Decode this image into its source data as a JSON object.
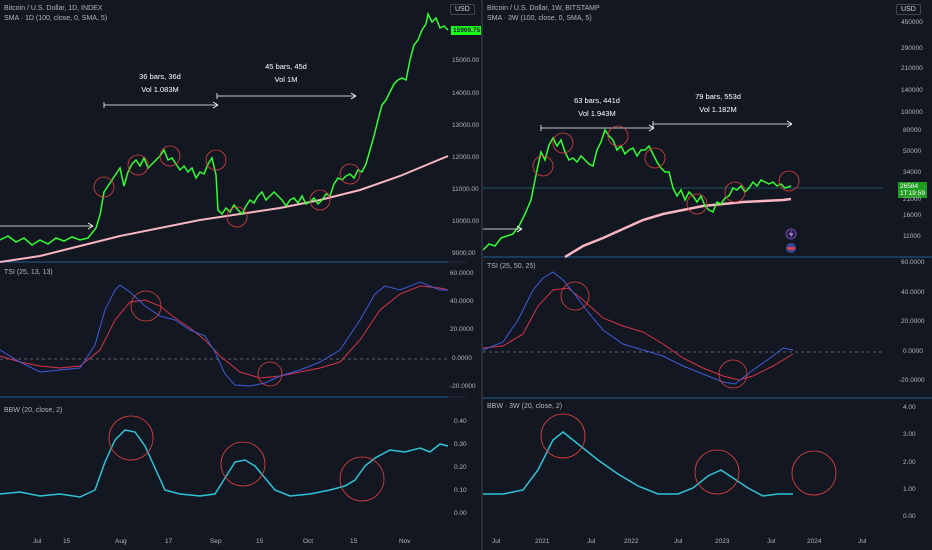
{
  "left": {
    "main_title": "Bitcoin / U.S. Dollar, 1D, INDEX",
    "sma_label": "SMA · 1D (100, close, 0, SMA, 5)",
    "tsi_label": "TSI (25, 13, 13)",
    "bbw_label": "BBW (20, close, 2)",
    "currency": "USD",
    "price_tag": "15969.75",
    "price_axis": [
      "15000.00",
      "14000.00",
      "13000.00",
      "12000.00",
      "11000.00",
      "10000.00",
      "9000.00"
    ],
    "tsi_axis": [
      "60.0000",
      "40.0000",
      "20.0000",
      "0.0000",
      "-20.0000"
    ],
    "bbw_axis": [
      "0.40",
      "0.30",
      "0.20",
      "0.10",
      "0.00"
    ],
    "x_axis": [
      "Jul",
      "15",
      "Aug",
      "17",
      "Sep",
      "15",
      "Oct",
      "15",
      "Nov"
    ],
    "annotation1": {
      "bars": "36 bars, 36d",
      "vol": "Vol 1.083M"
    },
    "annotation2": {
      "bars": "45 bars, 45d",
      "vol": "Vol 1M"
    }
  },
  "right": {
    "main_title": "Bitcoin / U.S. Dollar, 1W, BITSTAMP",
    "sma_label": "SMA · 3W (100, close, 0, SMA, 5)",
    "tsi_label": "TSI (25, 50, 25)",
    "bbw_label": "BBW · 3W (20, close, 2)",
    "currency": "USD",
    "price_tag": "26584",
    "price_tag_sub": "1T:19:59",
    "price_axis": [
      "450000",
      "290000",
      "210000",
      "140000",
      "100000",
      "80000",
      "50000",
      "34000",
      "21000",
      "16000",
      "11000"
    ],
    "tsi_axis": [
      "60.0000",
      "40.0000",
      "20.0000",
      "0.0000",
      "-20.0000"
    ],
    "bbw_axis": [
      "4.00",
      "3.00",
      "2.00",
      "1.00",
      "0.00"
    ],
    "x_axis": [
      "Jul",
      "2021",
      "Jul",
      "2022",
      "Jul",
      "2023",
      "Jul",
      "2024",
      "Jul"
    ],
    "annotation1": {
      "bars": "63 bars, 441d",
      "vol": "Vol 1.943M"
    },
    "annotation2": {
      "bars": "79 bars, 553d",
      "vol": "Vol 1.182M"
    }
  },
  "colors": {
    "background": "#131722",
    "price": "#33ff33",
    "sma": "#f7b6c2",
    "tsi": "#3f5bd8",
    "tsi_signal": "#d8334a",
    "bbw": "#2ec4d6",
    "circle": "#e0403f"
  }
}
